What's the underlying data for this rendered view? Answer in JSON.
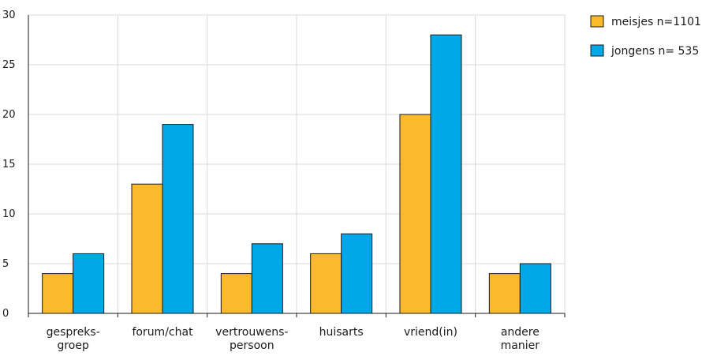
{
  "chart_data": {
    "type": "bar",
    "categories": [
      [
        "gespreks-",
        "groep"
      ],
      [
        "forum/chat"
      ],
      [
        "vertrouwens-",
        "persoon"
      ],
      [
        "huisarts"
      ],
      [
        "vriend(in)"
      ],
      [
        "andere",
        "manier"
      ]
    ],
    "series": [
      {
        "name": "meisjes n=1101",
        "color": "#fbb92c",
        "values": [
          4,
          13,
          4,
          6,
          20,
          4
        ]
      },
      {
        "name": "jongens n= 535",
        "color": "#00a8e8",
        "values": [
          6,
          19,
          7,
          8,
          28,
          5
        ]
      }
    ],
    "yticks": [
      "0",
      "5",
      "10",
      "15",
      "20",
      "25",
      "30"
    ],
    "ylim": [
      0,
      30
    ],
    "grid": true,
    "legend_position": "top-right",
    "gridline_color": "#d9d9d9",
    "axis_color": "#1a1a1a"
  }
}
